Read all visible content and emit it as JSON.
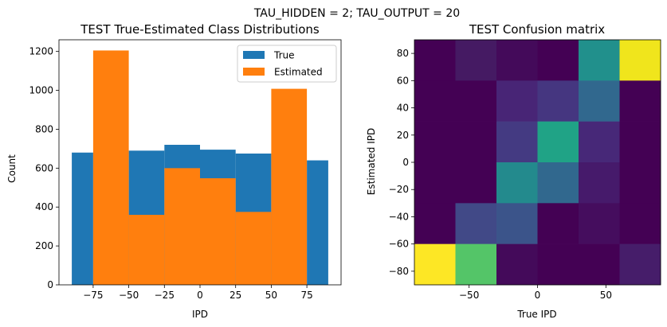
{
  "figure": {
    "suptitle": "TAU_HIDDEN = 2; TAU_OUTPUT = 20"
  },
  "chart_data": [
    {
      "type": "bar",
      "title": "TEST True-Estimated Class Distributions",
      "xlabel": "IPD",
      "ylabel": "Count",
      "xlim": [
        -99,
        99
      ],
      "ylim": [
        0,
        1260
      ],
      "xticks": [
        -75,
        -50,
        -25,
        0,
        25,
        50,
        75
      ],
      "yticks": [
        0,
        200,
        400,
        600,
        800,
        1000,
        1200
      ],
      "bin_edges": [
        -90,
        -75,
        -50,
        -25,
        0,
        25,
        50,
        75,
        90
      ],
      "legend_position": "top-right",
      "series": [
        {
          "name": "True",
          "color": "#1f77b4",
          "values": [
            680,
            0,
            690,
            720,
            695,
            675,
            0,
            640
          ]
        },
        {
          "name": "Estimated",
          "color": "#ff7f0e",
          "values": [
            0,
            1205,
            360,
            600,
            548,
            375,
            1008,
            0
          ]
        }
      ]
    },
    {
      "type": "heatmap",
      "title": "TEST Confusion matrix",
      "xlabel": "True IPD",
      "ylabel": "Estimated IPD",
      "xlim": [
        -90,
        90
      ],
      "ylim": [
        -90,
        90
      ],
      "xticks": [
        -50,
        0,
        50
      ],
      "yticks": [
        -80,
        -60,
        -40,
        -20,
        0,
        20,
        40,
        60,
        80
      ],
      "x_edges": [
        -90,
        -60,
        -30,
        0,
        30,
        60,
        90
      ],
      "y_edges": [
        -90,
        -60,
        -30,
        0,
        30,
        60,
        90
      ],
      "rows_top_to_bottom": [
        [
          "#440154",
          "#451a63",
          "#440a5a",
          "#440154",
          "#21908c",
          "#f0e51c"
        ],
        [
          "#440154",
          "#440154",
          "#482576",
          "#453680",
          "#31688e",
          "#440154"
        ],
        [
          "#440154",
          "#440154",
          "#443a82",
          "#20a386",
          "#472878",
          "#440154"
        ],
        [
          "#440154",
          "#440154",
          "#238a8d",
          "#31688e",
          "#461a6b",
          "#440154"
        ],
        [
          "#440154",
          "#414987",
          "#3b548a",
          "#440154",
          "#450d5e",
          "#440154"
        ],
        [
          "#fde725",
          "#54c568",
          "#440a5a",
          "#440154",
          "#440154",
          "#461d6a"
        ]
      ]
    }
  ]
}
